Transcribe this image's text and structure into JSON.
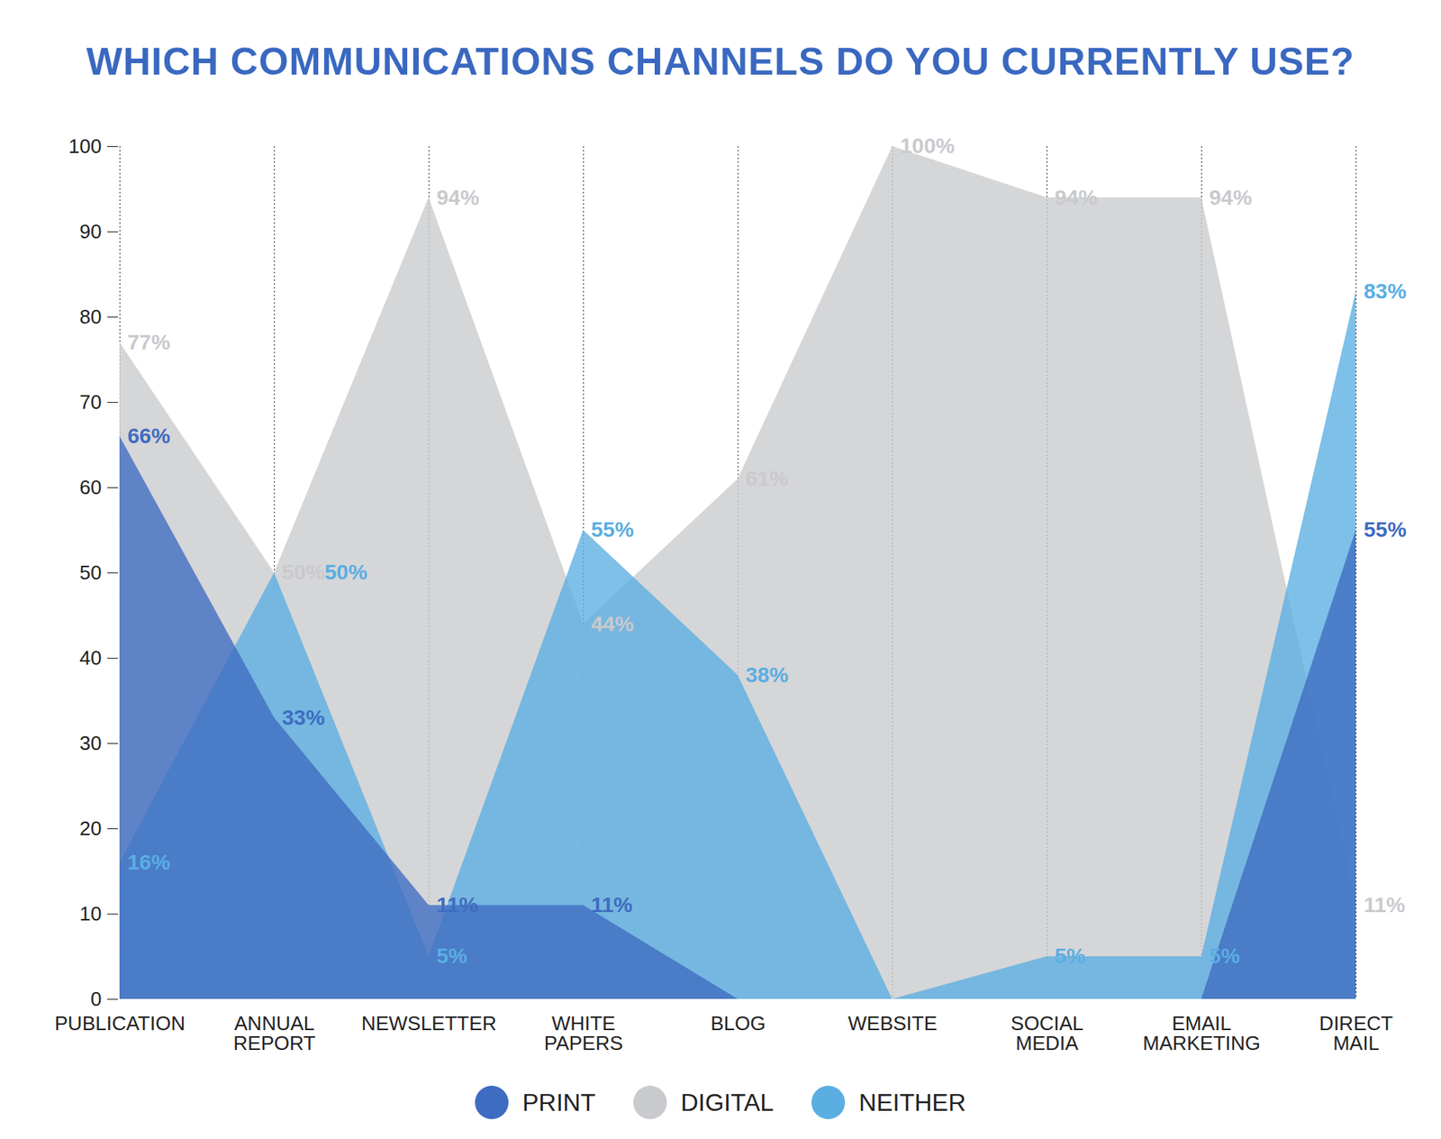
{
  "chart_data": {
    "type": "area",
    "title": "WHICH COMMUNICATIONS CHANNELS DO YOU CURRENTLY USE?",
    "categories": [
      "PUBLICATION",
      "ANNUAL REPORT",
      "NEWSLETTER",
      "WHITE PAPERS",
      "BLOG",
      "WEBSITE",
      "SOCIAL MEDIA",
      "EMAIL MARKETING",
      "DIRECT MAIL"
    ],
    "series": [
      {
        "name": "PRINT",
        "color": "#3e6cc2",
        "values": [
          66,
          33,
          11,
          11,
          0,
          0,
          0,
          0,
          55
        ],
        "value_labels": [
          "66%",
          "33%",
          "11%",
          "11%",
          null,
          null,
          null,
          null,
          "55%"
        ]
      },
      {
        "name": "DIGITAL",
        "color": "#c9cacd",
        "values": [
          77,
          50,
          94,
          44,
          61,
          100,
          94,
          94,
          11
        ],
        "value_labels": [
          "77%",
          "50%",
          "94%",
          "44%",
          "61%",
          "100%",
          "94%",
          "94%",
          "11%"
        ]
      },
      {
        "name": "NEITHER",
        "color": "#5aaee2",
        "values": [
          16,
          50,
          5,
          55,
          38,
          0,
          5,
          5,
          83
        ],
        "value_labels": [
          "16%",
          "50%",
          "5%",
          "55%",
          "38%",
          null,
          "5%",
          "5%",
          "83%"
        ]
      }
    ],
    "ylim": [
      0,
      100
    ],
    "yticks": [
      0,
      10,
      20,
      30,
      40,
      50,
      60,
      70,
      80,
      90,
      100
    ],
    "grid": true,
    "stacked": false,
    "data_labels": true,
    "legend": "bottom"
  }
}
